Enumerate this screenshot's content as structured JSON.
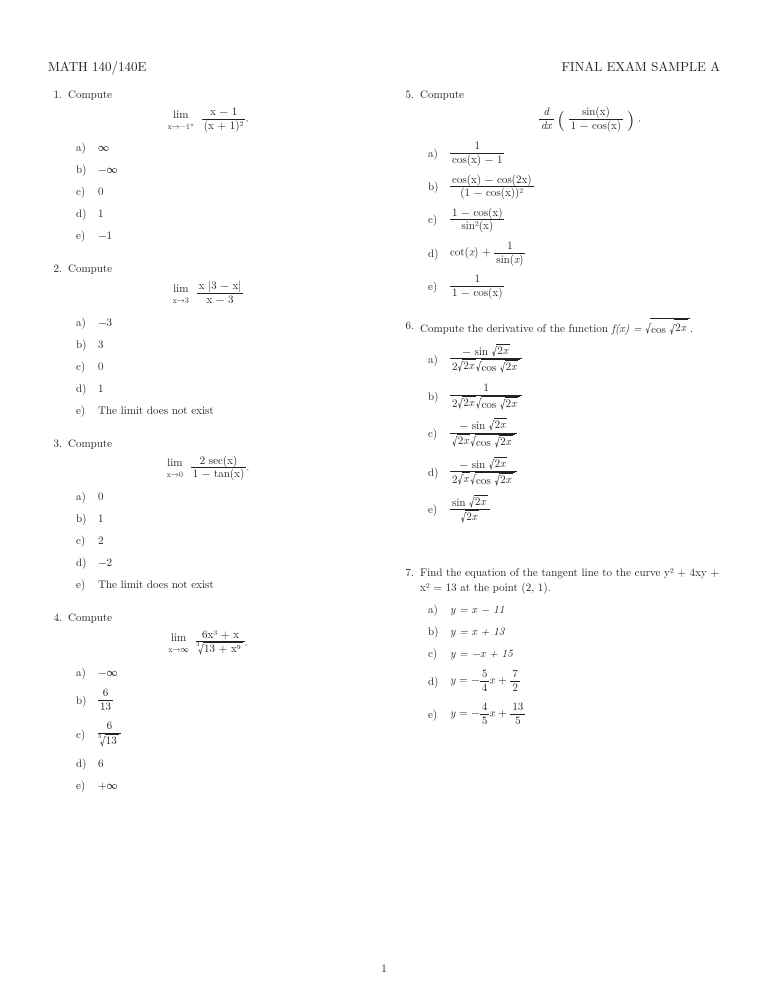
{
  "header": {
    "left": "MATH 140/140E",
    "right": "FINAL EXAM SAMPLE A"
  },
  "page_number": "1",
  "labels": {
    "compute": "Compute",
    "lim": "lim",
    "dne": "The limit does not exist"
  },
  "problems": [
    {
      "num": "1.",
      "lim_sub": "x→−1⁺",
      "expr_num": "x − 1",
      "expr_den": "(x + 1)²",
      "tail": ".",
      "choices": [
        "∞",
        "−∞",
        "0",
        "1",
        "−1"
      ]
    },
    {
      "num": "2.",
      "lim_sub": "x→3",
      "expr_num": "x |3 − x|",
      "expr_den": "x − 3",
      "tail": "",
      "choices": [
        "−3",
        "3",
        "0",
        "1",
        "@DNE"
      ]
    },
    {
      "num": "3.",
      "lim_sub": "x→0",
      "expr_num": "2 sec(x)",
      "expr_den": "1 − tan(x)",
      "tail": ".",
      "choices": [
        "0",
        "1",
        "2",
        "−2",
        "@DNE"
      ]
    },
    {
      "num": "4.",
      "lim_sub": "x→∞",
      "expr_num": "6x³ + x",
      "expr_den_cubert": "13 + x⁹",
      "tail": ".",
      "choices": [
        "−∞",
        "@FRAC:6:13",
        "@FRAC:6:∛13",
        "6",
        "+∞"
      ]
    },
    {
      "num": "5.",
      "lead": "Compute",
      "deriv_num": "sin(x)",
      "deriv_den": "1 − cos(x)",
      "choices_html": [
        "@FRAC:1:cos(x) − 1",
        "@FRAC:cos(x) − cos(2x):(1 − cos(x))²",
        "@FRAC:1 − cos(x):sin²(x)",
        "@COT",
        "@FRAC:1:1 − cos(x)"
      ]
    },
    {
      "num": "6.",
      "text_pre": "Compute the derivative of the function ",
      "text_post": ".",
      "fn": "f(x) = ",
      "choices_sqrt": true
    },
    {
      "num": "7.",
      "text": "Find the equation of the tangent line to the curve y² + 4xy + x² = 13 at the point (2, 1).",
      "choices_plain": [
        "y = x − 11",
        "y = x + 13",
        "y = −x + 15",
        "@YFRAC:5:4:7:2",
        "@YFRAC:4:5:13:5"
      ]
    }
  ],
  "choice_letters": [
    "a)",
    "b)",
    "c)",
    "d)",
    "e)"
  ]
}
